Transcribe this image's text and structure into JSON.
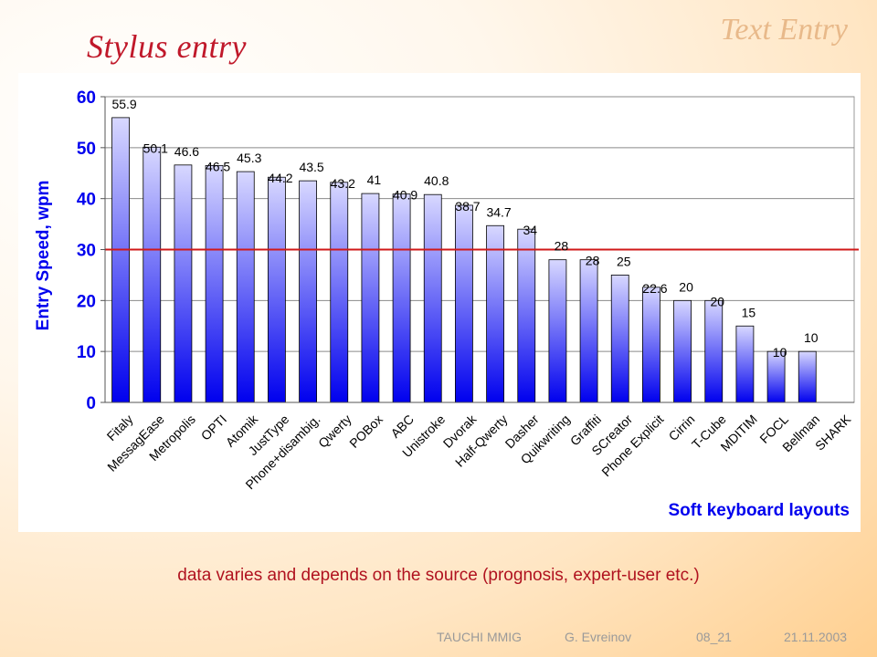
{
  "slide": {
    "title": "Stylus entry",
    "topic": "Text Entry",
    "caption": "data varies and depends on the source (prognosis, expert-user etc.)"
  },
  "footer": {
    "org": "TAUCHI MMIG",
    "author": "G. Evreinov",
    "slide_no": "08_21",
    "date": "21.11.2003"
  },
  "colors": {
    "title": "#c0182a",
    "axis_text": "#0000ee",
    "bar_top": "#d8d8ff",
    "bar_bottom": "#0000ee",
    "reference_line": "#d01818"
  },
  "chart_data": {
    "type": "bar",
    "categories": [
      "Fitaly",
      "MessagEase",
      "Metropolis",
      "OPTI",
      "Atomik",
      "JustType",
      "Phone+disambig.",
      "Qwerty",
      "POBox",
      "ABC",
      "Unistroke",
      "Dvorak",
      "Half-Qwerty",
      "Dasher",
      "Quikwriting",
      "Graffiti",
      "SCreator",
      "Phone Explicit",
      "Cirrin",
      "T-Cube",
      "MDITIM",
      "FOCL",
      "Bellman",
      "SHARK"
    ],
    "values": [
      55.9,
      50.1,
      46.6,
      46.5,
      45.3,
      44.2,
      43.5,
      43.2,
      41,
      40.9,
      40.8,
      38.7,
      34.7,
      34,
      28,
      28,
      25,
      22.6,
      20,
      20,
      15,
      10,
      10,
      null
    ],
    "labels": [
      "55.9",
      "50.1",
      "46.6",
      "46.5",
      "45.3",
      "44.2",
      "43.5",
      "43.2",
      "41",
      "40.9",
      "40.8",
      "38.7",
      "34.7",
      "34",
      "28",
      "28",
      "25",
      "22.6",
      "20",
      "20",
      "15",
      "10",
      "10",
      ""
    ],
    "ylabel": "Entry Speed, wpm",
    "xlabel": "Soft keyboard layouts",
    "ylim": [
      0,
      60
    ],
    "yticks": [
      "0",
      "10",
      "20",
      "30",
      "40",
      "50",
      "60"
    ],
    "reference_line": 30,
    "grid": true
  }
}
